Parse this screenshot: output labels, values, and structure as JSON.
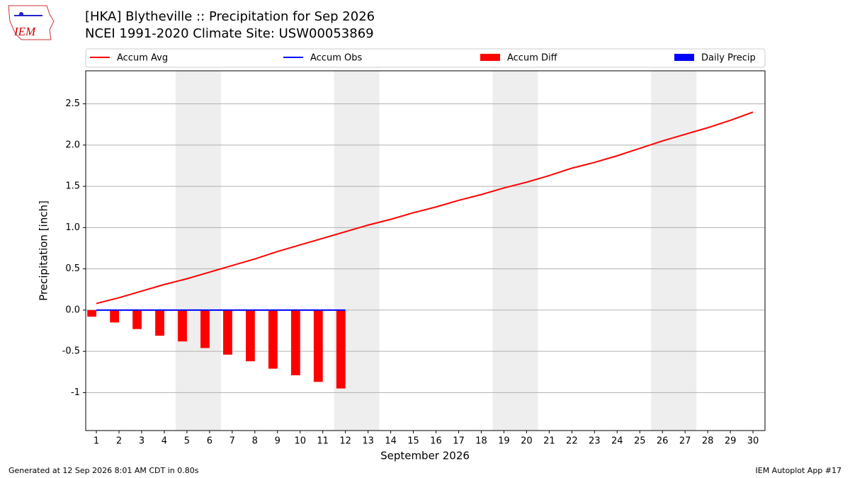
{
  "chart_data": {
    "type": "bar",
    "title": "[HKA] Blytheville :: Precipitation for Sep 2026",
    "subtitle": "NCEI 1991-2020 Climate Site: USW00053869",
    "logo_text": "IEM",
    "ylabel": "Precipitation [inch]",
    "xlabel": "September 2026",
    "footer_left": "Generated at 12 Sep 2026 8:01 AM CDT in 0.80s",
    "footer_right": "IEM Autoplot App #17",
    "x": [
      1,
      2,
      3,
      4,
      5,
      6,
      7,
      8,
      9,
      10,
      11,
      12,
      13,
      14,
      15,
      16,
      17,
      18,
      19,
      20,
      21,
      22,
      23,
      24,
      25,
      26,
      27,
      28,
      29,
      30
    ],
    "xlim": [
      0.53,
      30.53
    ],
    "xticks": [
      1,
      2,
      3,
      4,
      5,
      6,
      7,
      8,
      9,
      10,
      11,
      12,
      13,
      14,
      15,
      16,
      17,
      18,
      19,
      20,
      21,
      22,
      23,
      24,
      25,
      26,
      27,
      28,
      29,
      30
    ],
    "ylim": [
      -1.46,
      2.9
    ],
    "yticks": [
      -1,
      -0.5,
      {
        "value": 0,
        "label": "0.0"
      },
      0.5,
      {
        "value": 1,
        "label": "1.0"
      },
      1.5,
      {
        "value": 2,
        "label": "2.0"
      },
      2.5
    ],
    "grid": true,
    "legend": "top",
    "weekend_shading": [
      [
        4.5,
        6.5
      ],
      [
        11.5,
        13.5
      ],
      [
        18.5,
        20.5
      ],
      [
        25.5,
        27.5
      ]
    ],
    "series": [
      {
        "name": "Accum Avg",
        "type": "line",
        "color": "#ff0000",
        "values": [
          0.08,
          0.15,
          0.23,
          0.31,
          0.38,
          0.46,
          0.54,
          0.62,
          0.71,
          0.79,
          0.87,
          0.95,
          1.03,
          1.1,
          1.18,
          1.25,
          1.33,
          1.4,
          1.48,
          1.55,
          1.63,
          1.72,
          1.79,
          1.87,
          1.96,
          2.05,
          2.13,
          2.21,
          2.3,
          2.4
        ]
      },
      {
        "name": "Accum Obs",
        "type": "line",
        "color": "#0000ff",
        "values": [
          0,
          0,
          0,
          0,
          0,
          0,
          0,
          0,
          0,
          0,
          0,
          0,
          null,
          null,
          null,
          null,
          null,
          null,
          null,
          null,
          null,
          null,
          null,
          null,
          null,
          null,
          null,
          null,
          null,
          null
        ]
      },
      {
        "name": "Accum Diff",
        "type": "bar",
        "color": "#ff0000",
        "values": [
          -0.08,
          -0.15,
          -0.23,
          -0.31,
          -0.38,
          -0.46,
          -0.54,
          -0.62,
          -0.71,
          -0.79,
          -0.87,
          -0.95,
          null,
          null,
          null,
          null,
          null,
          null,
          null,
          null,
          null,
          null,
          null,
          null,
          null,
          null,
          null,
          null,
          null,
          null
        ]
      },
      {
        "name": "Daily Precip",
        "type": "bar",
        "color": "#0000ff",
        "values": [
          0,
          0,
          0,
          0,
          0,
          0,
          0,
          0,
          0,
          0,
          0,
          0,
          null,
          null,
          null,
          null,
          null,
          null,
          null,
          null,
          null,
          null,
          null,
          null,
          null,
          null,
          null,
          null,
          null,
          null
        ]
      }
    ]
  }
}
